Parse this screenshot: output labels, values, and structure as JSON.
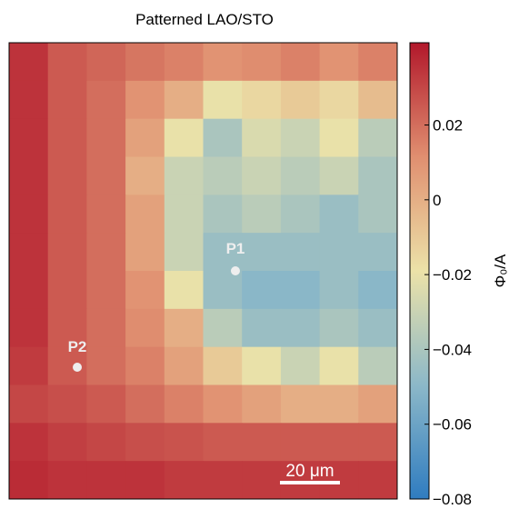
{
  "chart_data": {
    "type": "heatmap",
    "title": "Patterned LAO/STO",
    "colorbar_label": "Φ₀/A",
    "annotations": [
      "P1",
      "P2",
      "20 μm"
    ],
    "colormap": [
      "#2f7cc0",
      "#8cb8c8",
      "#ece2a8",
      "#e08f70",
      "#b2182b"
    ],
    "clim": [
      -0.08,
      0.042
    ],
    "cticks": [
      {
        "value": -0.08,
        "label": "−0.08"
      },
      {
        "value": -0.06,
        "label": "−0.06"
      },
      {
        "value": -0.04,
        "label": "−0.04"
      },
      {
        "value": -0.02,
        "label": "−0.02"
      },
      0,
      0.02
    ],
    "z": [
      [
        0.035,
        0.025,
        0.022,
        0.018,
        0.015,
        0.01,
        0.012,
        0.015,
        0.01,
        0.015
      ],
      [
        0.035,
        0.025,
        0.02,
        0.01,
        0.0,
        -0.02,
        -0.015,
        -0.01,
        -0.015,
        -0.005
      ],
      [
        0.035,
        0.025,
        0.02,
        0.005,
        -0.02,
        -0.04,
        -0.025,
        -0.03,
        -0.02,
        -0.035
      ],
      [
        0.035,
        0.025,
        0.02,
        0.0,
        -0.03,
        -0.035,
        -0.03,
        -0.035,
        -0.03,
        -0.04
      ],
      [
        0.035,
        0.025,
        0.02,
        0.005,
        -0.03,
        -0.04,
        -0.035,
        -0.04,
        -0.045,
        -0.04
      ],
      [
        0.035,
        0.025,
        0.02,
        0.005,
        -0.03,
        -0.045,
        -0.045,
        -0.045,
        -0.045,
        -0.045
      ],
      [
        0.035,
        0.025,
        0.02,
        0.01,
        -0.02,
        -0.045,
        -0.05,
        -0.05,
        -0.045,
        -0.05
      ],
      [
        0.035,
        0.025,
        0.02,
        0.012,
        0.0,
        -0.035,
        -0.045,
        -0.045,
        -0.04,
        -0.045
      ],
      [
        0.033,
        0.025,
        0.02,
        0.015,
        0.005,
        -0.01,
        -0.02,
        -0.03,
        -0.02,
        -0.035
      ],
      [
        0.03,
        0.028,
        0.025,
        0.02,
        0.015,
        0.01,
        0.005,
        0.0,
        0.0,
        0.005
      ],
      [
        0.035,
        0.032,
        0.03,
        0.028,
        0.027,
        0.025,
        0.025,
        0.025,
        0.025,
        0.025
      ],
      [
        0.037,
        0.035,
        0.035,
        0.035,
        0.033,
        0.033,
        0.033,
        0.033,
        0.033,
        0.033
      ]
    ]
  }
}
